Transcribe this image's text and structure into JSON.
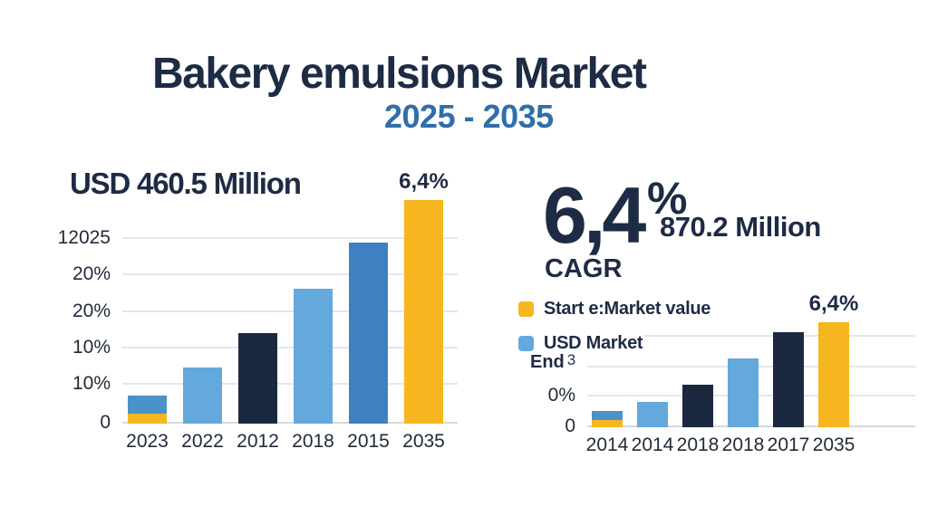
{
  "page": {
    "title": "Bakery emulsions Market",
    "subtitle": "2025 - 2035"
  },
  "left_panel": {
    "heading": "USD 460.5 Million"
  },
  "right_panel": {
    "cagr_value": "6,4",
    "cagr_pct_sign": "%",
    "market_value": "870.2 Million",
    "cagr_label": "CAGR",
    "legend": [
      {
        "swatch_color": "#F5B61F",
        "label": "Start e:Market value"
      },
      {
        "swatch_color": "#63A9DC",
        "label": "USD Market"
      }
    ],
    "end_label": "End",
    "end_sup": "3"
  },
  "colors": {
    "title_navy": "#1E2B45",
    "subtitle_blue": "#2F6FA9",
    "bar_navy": "#1B2940",
    "bar_steel_blue": "#4A92CA",
    "bar_light_blue": "#63A9DC",
    "bar_mid_blue": "#3E81C1",
    "bar_yellow": "#F5B61F",
    "gridline": "#E4E7EA"
  },
  "chart_data": [
    {
      "id": "left",
      "type": "bar",
      "stacked": true,
      "title": "USD 460.5 Million",
      "grid": true,
      "legend_position": "none",
      "note": "y tick labels printed non-sequentially on source image; bar values are percent of plot height",
      "categories": [
        "2023",
        "2022",
        "2012",
        "2018",
        "2015",
        "2035"
      ],
      "y_ticks": [
        {
          "label": "0",
          "pos_pct": 0
        },
        {
          "label": "10%",
          "pos_pct": 16.8
        },
        {
          "label": "10%",
          "pos_pct": 32.4
        },
        {
          "label": "20%",
          "pos_pct": 48.0
        },
        {
          "label": "20%",
          "pos_pct": 64.1
        },
        {
          "label": "12025",
          "pos_pct": 79.7
        }
      ],
      "bars": [
        {
          "label": "2023",
          "segments": [
            {
              "color": "yellow",
              "value_pct": 4.3
            },
            {
              "color": "steel_blue",
              "value_pct": 7.8
            }
          ]
        },
        {
          "label": "2022",
          "segments": [
            {
              "color": "light_blue",
              "value_pct": 24.2
            }
          ]
        },
        {
          "label": "2012",
          "segments": [
            {
              "color": "navy",
              "value_pct": 39.1
            }
          ]
        },
        {
          "label": "2018",
          "segments": [
            {
              "color": "light_blue",
              "value_pct": 58.2
            }
          ]
        },
        {
          "label": "2015",
          "segments": [
            {
              "color": "mid_blue",
              "value_pct": 78.1
            }
          ]
        },
        {
          "label": "2035",
          "segments": [
            {
              "color": "yellow",
              "value_pct": 96.5
            }
          ],
          "annotation": "6,4%"
        }
      ]
    },
    {
      "id": "right",
      "type": "bar",
      "stacked": true,
      "title": "6,4% CAGR — 870.2 Million",
      "grid": true,
      "legend_position": "top-left",
      "note": "bar values are percent of plot height",
      "categories": [
        "2014",
        "2014",
        "2018",
        "2018",
        "2017",
        "2035"
      ],
      "y_ticks": [
        {
          "label": "0",
          "pos_pct": 0
        },
        {
          "label": "0%",
          "pos_pct": 27.2
        },
        {
          "label": "",
          "pos_pct": 52.8
        },
        {
          "label": "",
          "pos_pct": 80.0,
          "inset_left": 62
        }
      ],
      "bars": [
        {
          "label": "2014",
          "segments": [
            {
              "color": "yellow",
              "value_pct": 6.4
            },
            {
              "color": "steel_blue",
              "value_pct": 8.0
            }
          ]
        },
        {
          "label": "2014",
          "segments": [
            {
              "color": "light_blue",
              "value_pct": 22.4
            }
          ]
        },
        {
          "label": "2018",
          "segments": [
            {
              "color": "navy",
              "value_pct": 37.6
            }
          ]
        },
        {
          "label": "2018",
          "segments": [
            {
              "color": "light_blue",
              "value_pct": 60.8
            }
          ]
        },
        {
          "label": "2017",
          "segments": [
            {
              "color": "navy",
              "value_pct": 84.0
            }
          ]
        },
        {
          "label": "2035",
          "segments": [
            {
              "color": "yellow",
              "value_pct": 92.8
            }
          ],
          "annotation": "6,4%"
        }
      ]
    }
  ]
}
